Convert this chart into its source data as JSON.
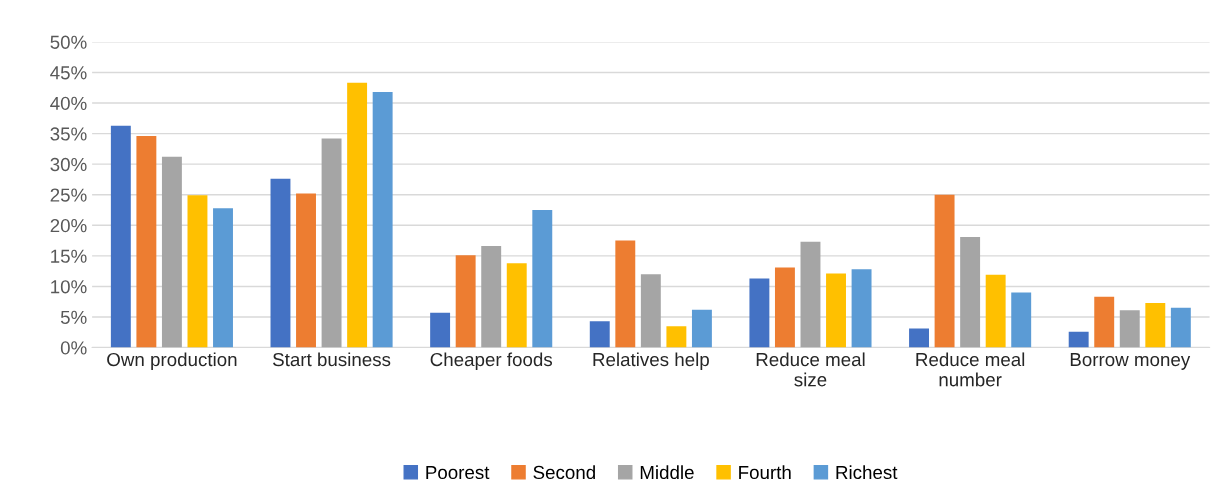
{
  "chart_data": {
    "type": "bar",
    "categories": [
      "Own production",
      "Start business",
      "Cheaper foods",
      "Relatives help",
      "Reduce meal\nsize",
      "Reduce meal\nnumber",
      "Borrow money"
    ],
    "series": [
      {
        "name": "Poorest",
        "color": "#4472c4",
        "values": [
          36.3,
          27.6,
          5.7,
          4.3,
          11.3,
          3.1,
          2.6
        ]
      },
      {
        "name": "Second",
        "color": "#ed7d31",
        "values": [
          34.6,
          25.2,
          15.1,
          17.5,
          13.1,
          25.0,
          8.3
        ]
      },
      {
        "name": "Middle",
        "color": "#a5a5a5",
        "values": [
          31.2,
          34.2,
          16.6,
          12.0,
          17.3,
          18.1,
          6.1
        ]
      },
      {
        "name": "Fourth",
        "color": "#ffc000",
        "values": [
          24.9,
          43.3,
          13.8,
          3.5,
          12.1,
          11.9,
          7.3
        ]
      },
      {
        "name": "Richest",
        "color": "#5b9bd5",
        "values": [
          22.8,
          41.8,
          22.5,
          6.2,
          12.8,
          9.0,
          6.5
        ]
      }
    ],
    "ylim": [
      0,
      50
    ],
    "yticks": [
      {
        "value": 0,
        "label": "0%"
      },
      {
        "value": 5,
        "label": "5%"
      },
      {
        "value": 10,
        "label": "10%"
      },
      {
        "value": 15,
        "label": "15%"
      },
      {
        "value": 20,
        "label": "20%"
      },
      {
        "value": 25,
        "label": "25%"
      },
      {
        "value": 30,
        "label": "30%"
      },
      {
        "value": 35,
        "label": "35%"
      },
      {
        "value": 40,
        "label": "40%"
      },
      {
        "value": 45,
        "label": "45%"
      },
      {
        "value": 50,
        "label": "50%"
      }
    ],
    "grid": "y",
    "legend": "bottom"
  }
}
